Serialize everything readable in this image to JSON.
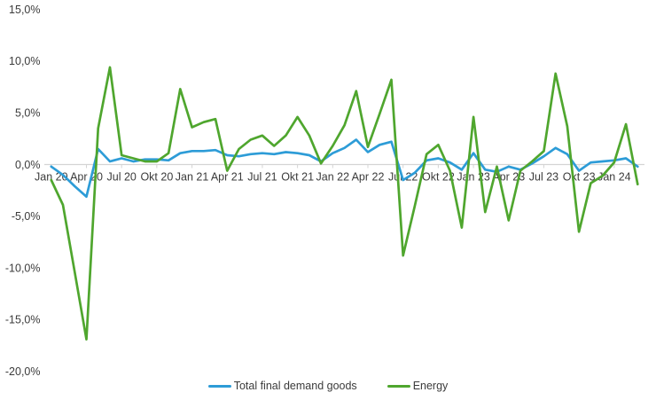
{
  "chart_data": {
    "type": "line",
    "title": "",
    "xlabel": "",
    "ylabel": "",
    "grid": false,
    "legend_position": "bottom-center",
    "axis_color": "#d4d4d4",
    "tick_text_color": "#3b3b3b",
    "y_axis": {
      "min": -20,
      "max": 15,
      "tick_values": [
        15,
        10,
        5,
        0,
        -5,
        -10,
        -15,
        -20
      ],
      "tick_labels": [
        "15,0%",
        "10,0%",
        "5,0%",
        "0,0%",
        "-5,0%",
        "-10,0%",
        "-15,0%",
        "-20,0%"
      ]
    },
    "x_axis": {
      "n_points": 51,
      "first_month": "Jan 2020",
      "last_month": "Mär 2024",
      "visible_tick_every": 3,
      "tick_labels": [
        "Jan 20",
        "Apr 20",
        "Jul 20",
        "Okt 20",
        "Jan 21",
        "Apr 21",
        "Jul 21",
        "Okt 21",
        "Jan 22",
        "Apr 22",
        "Jul 22",
        "Okt 22",
        "Jan 23",
        "Apr 23",
        "Jul 23",
        "Okt 23",
        "Jan 24"
      ]
    },
    "series": [
      {
        "name": "Total final demand goods",
        "color": "#2d9cd7",
        "values": [
          -0.2,
          -1.0,
          -2.1,
          -3.1,
          1.5,
          0.3,
          0.6,
          0.3,
          0.5,
          0.5,
          0.4,
          1.1,
          1.3,
          1.3,
          1.4,
          0.9,
          0.8,
          1.0,
          1.1,
          1.0,
          1.2,
          1.1,
          0.9,
          0.3,
          1.1,
          1.6,
          2.4,
          1.2,
          1.9,
          2.2,
          -1.5,
          -0.8,
          0.4,
          0.6,
          0.2,
          -0.5,
          1.1,
          -0.5,
          -0.7,
          -0.2,
          -0.5,
          0.1,
          0.8,
          1.6,
          1.0,
          -0.6,
          0.2,
          0.3,
          0.4,
          0.6,
          -0.2
        ]
      },
      {
        "name": "Energy",
        "color": "#4fa62e",
        "values": [
          -1.5,
          -3.9,
          -10.4,
          -16.9,
          3.5,
          9.4,
          0.9,
          0.6,
          0.3,
          0.3,
          1.1,
          7.3,
          3.6,
          4.1,
          4.4,
          -0.6,
          1.5,
          2.4,
          2.8,
          1.8,
          2.8,
          4.6,
          2.8,
          0.1,
          1.8,
          3.8,
          7.1,
          1.7,
          4.9,
          8.2,
          -8.8,
          -4.0,
          1.0,
          1.9,
          -0.6,
          -6.1,
          4.6,
          -4.6,
          -0.2,
          -5.4,
          -0.6,
          0.3,
          1.3,
          8.8,
          3.7,
          -6.5,
          -1.8,
          -1.1,
          0.2,
          3.9,
          -1.9
        ]
      }
    ]
  },
  "legend": {
    "items": [
      {
        "label": "Total final demand goods"
      },
      {
        "label": "Energy"
      }
    ]
  }
}
